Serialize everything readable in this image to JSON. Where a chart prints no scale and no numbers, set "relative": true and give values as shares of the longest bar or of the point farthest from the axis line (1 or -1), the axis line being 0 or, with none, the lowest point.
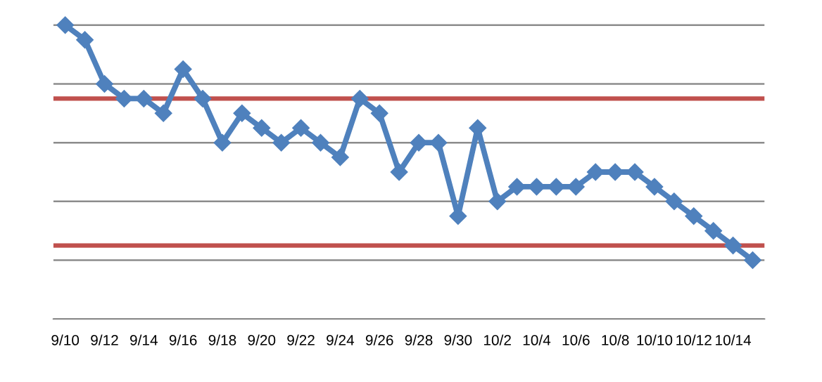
{
  "chart_data": {
    "type": "line",
    "relative": true,
    "categories": [
      "9/10",
      null,
      "9/12",
      null,
      "9/14",
      null,
      "9/16",
      null,
      "9/18",
      null,
      "9/20",
      null,
      "9/22",
      null,
      "9/24",
      null,
      "9/26",
      null,
      "9/28",
      null,
      "9/30",
      null,
      "10/2",
      null,
      "10/4",
      null,
      "10/6",
      null,
      "10/8",
      null,
      "10/10",
      null,
      "10/12",
      null,
      "10/14",
      null
    ],
    "series": [
      {
        "color": "#4f81bd",
        "values": [
          1,
          0.95,
          0.8,
          0.75,
          0.75,
          0.7,
          0.85,
          0.75,
          0.6,
          0.7,
          0.65,
          0.6,
          0.65,
          0.6,
          0.55,
          0.75,
          0.7,
          0.5,
          0.6,
          0.6,
          0.35,
          0.65,
          0.4,
          0.45,
          0.45,
          0.45,
          0.45,
          0.5,
          0.5,
          0.5,
          0.45,
          0.4,
          0.35,
          0.3,
          0.25,
          0.2
        ]
      }
    ],
    "ref_lines": [
      {
        "axis": "y",
        "value": 0.75,
        "color": "#c0504d"
      },
      {
        "axis": "y",
        "value": 0.25,
        "color": "#c0504d"
      }
    ],
    "grid": "y",
    "marker": "diamond",
    "line_style": "solid",
    "tick_labels": "x"
  }
}
